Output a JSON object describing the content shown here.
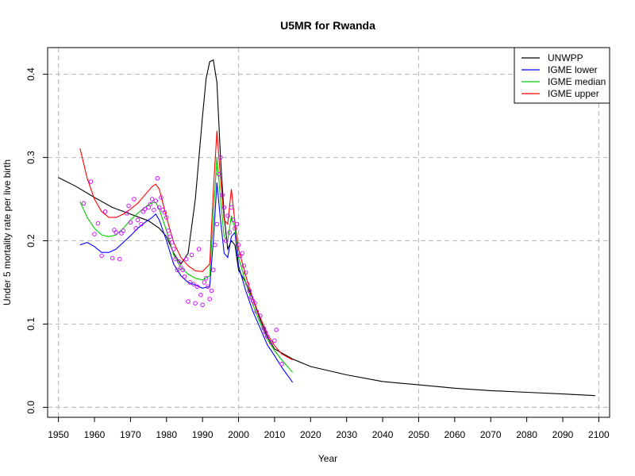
{
  "chart_data": {
    "type": "line",
    "title": "U5MR for Rwanda",
    "xlabel": "Year",
    "ylabel": "Under 5 mortality rate per live birth",
    "xlim": [
      1947,
      2103
    ],
    "ylim": [
      -0.012,
      0.432
    ],
    "x_ticks": [
      1950,
      1960,
      1970,
      1980,
      1990,
      2000,
      2010,
      2020,
      2030,
      2040,
      2050,
      2060,
      2070,
      2080,
      2090,
      2100
    ],
    "y_ticks": [
      0.0,
      0.1,
      0.2,
      0.3,
      0.4
    ],
    "x_tick_labels": [
      "1950",
      "1960",
      "1970",
      "1980",
      "1990",
      "2000",
      "2010",
      "2020",
      "2030",
      "2040",
      "2050",
      "2060",
      "2070",
      "2080",
      "2090",
      "2100"
    ],
    "y_tick_labels": [
      "0.0",
      "0.1",
      "0.2",
      "0.3",
      "0.4"
    ],
    "grid": true,
    "grid_x": [
      1950,
      2000,
      2050,
      2100
    ],
    "grid_y": [
      0.0,
      0.1,
      0.2,
      0.3,
      0.4
    ],
    "legend_position": "top-right",
    "series": [
      {
        "name": "UNWPP",
        "color": "#000000",
        "points": [
          [
            1950,
            0.276
          ],
          [
            1955,
            0.265
          ],
          [
            1960,
            0.252
          ],
          [
            1965,
            0.24
          ],
          [
            1970,
            0.232
          ],
          [
            1975,
            0.224
          ],
          [
            1978,
            0.215
          ],
          [
            1980,
            0.205
          ],
          [
            1982,
            0.185
          ],
          [
            1984,
            0.172
          ],
          [
            1986,
            0.185
          ],
          [
            1988,
            0.25
          ],
          [
            1990,
            0.35
          ],
          [
            1991,
            0.395
          ],
          [
            1992,
            0.415
          ],
          [
            1993,
            0.417
          ],
          [
            1994,
            0.39
          ],
          [
            1995,
            0.3
          ],
          [
            1996,
            0.23
          ],
          [
            1997,
            0.19
          ],
          [
            1998,
            0.2
          ],
          [
            1999,
            0.195
          ],
          [
            2000,
            0.165
          ],
          [
            2002,
            0.15
          ],
          [
            2004,
            0.13
          ],
          [
            2006,
            0.105
          ],
          [
            2008,
            0.085
          ],
          [
            2010,
            0.07
          ],
          [
            2015,
            0.058
          ],
          [
            2020,
            0.049
          ],
          [
            2030,
            0.039
          ],
          [
            2040,
            0.031
          ],
          [
            2050,
            0.027
          ],
          [
            2060,
            0.023
          ],
          [
            2070,
            0.02
          ],
          [
            2080,
            0.018
          ],
          [
            2090,
            0.016
          ],
          [
            2099,
            0.014
          ]
        ]
      },
      {
        "name": "IGME lower",
        "color": "#0000ff",
        "points": [
          [
            1956,
            0.195
          ],
          [
            1958,
            0.198
          ],
          [
            1960,
            0.193
          ],
          [
            1962,
            0.186
          ],
          [
            1964,
            0.186
          ],
          [
            1966,
            0.19
          ],
          [
            1968,
            0.198
          ],
          [
            1970,
            0.206
          ],
          [
            1972,
            0.215
          ],
          [
            1974,
            0.222
          ],
          [
            1976,
            0.228
          ],
          [
            1977,
            0.232
          ],
          [
            1978,
            0.225
          ],
          [
            1980,
            0.2
          ],
          [
            1982,
            0.172
          ],
          [
            1984,
            0.158
          ],
          [
            1986,
            0.15
          ],
          [
            1988,
            0.147
          ],
          [
            1990,
            0.143
          ],
          [
            1992,
            0.145
          ],
          [
            1993,
            0.2
          ],
          [
            1994,
            0.27
          ],
          [
            1995,
            0.225
          ],
          [
            1996,
            0.185
          ],
          [
            1997,
            0.18
          ],
          [
            1998,
            0.205
          ],
          [
            1999,
            0.21
          ],
          [
            2000,
            0.17
          ],
          [
            2002,
            0.14
          ],
          [
            2004,
            0.115
          ],
          [
            2006,
            0.095
          ],
          [
            2008,
            0.075
          ],
          [
            2010,
            0.062
          ],
          [
            2012,
            0.048
          ],
          [
            2015,
            0.03
          ]
        ]
      },
      {
        "name": "IGME median",
        "color": "#00cc00",
        "points": [
          [
            1956,
            0.247
          ],
          [
            1958,
            0.228
          ],
          [
            1960,
            0.215
          ],
          [
            1962,
            0.207
          ],
          [
            1964,
            0.205
          ],
          [
            1966,
            0.207
          ],
          [
            1968,
            0.215
          ],
          [
            1970,
            0.225
          ],
          [
            1972,
            0.233
          ],
          [
            1974,
            0.24
          ],
          [
            1976,
            0.246
          ],
          [
            1977,
            0.246
          ],
          [
            1978,
            0.238
          ],
          [
            1980,
            0.212
          ],
          [
            1982,
            0.183
          ],
          [
            1984,
            0.168
          ],
          [
            1986,
            0.16
          ],
          [
            1988,
            0.155
          ],
          [
            1990,
            0.153
          ],
          [
            1992,
            0.158
          ],
          [
            1993,
            0.23
          ],
          [
            1994,
            0.3
          ],
          [
            1995,
            0.25
          ],
          [
            1996,
            0.205
          ],
          [
            1997,
            0.2
          ],
          [
            1998,
            0.23
          ],
          [
            1999,
            0.215
          ],
          [
            2000,
            0.18
          ],
          [
            2002,
            0.15
          ],
          [
            2004,
            0.123
          ],
          [
            2006,
            0.101
          ],
          [
            2008,
            0.082
          ],
          [
            2010,
            0.068
          ],
          [
            2012,
            0.057
          ],
          [
            2015,
            0.042
          ]
        ]
      },
      {
        "name": "IGME upper",
        "color": "#ff0000",
        "points": [
          [
            1956,
            0.311
          ],
          [
            1958,
            0.275
          ],
          [
            1960,
            0.25
          ],
          [
            1962,
            0.235
          ],
          [
            1964,
            0.228
          ],
          [
            1966,
            0.228
          ],
          [
            1968,
            0.232
          ],
          [
            1970,
            0.238
          ],
          [
            1972,
            0.245
          ],
          [
            1974,
            0.255
          ],
          [
            1976,
            0.265
          ],
          [
            1977,
            0.268
          ],
          [
            1978,
            0.262
          ],
          [
            1980,
            0.228
          ],
          [
            1982,
            0.198
          ],
          [
            1984,
            0.18
          ],
          [
            1986,
            0.17
          ],
          [
            1988,
            0.164
          ],
          [
            1990,
            0.163
          ],
          [
            1992,
            0.172
          ],
          [
            1993,
            0.26
          ],
          [
            1994,
            0.332
          ],
          [
            1995,
            0.275
          ],
          [
            1996,
            0.225
          ],
          [
            1997,
            0.22
          ],
          [
            1998,
            0.262
          ],
          [
            1999,
            0.222
          ],
          [
            2000,
            0.19
          ],
          [
            2002,
            0.158
          ],
          [
            2004,
            0.13
          ],
          [
            2006,
            0.108
          ],
          [
            2008,
            0.088
          ],
          [
            2010,
            0.074
          ],
          [
            2012,
            0.064
          ],
          [
            2015,
            0.057
          ]
        ]
      }
    ],
    "scatter": {
      "color": "#cc00ff",
      "points": [
        [
          1957,
          0.245
        ],
        [
          1959,
          0.271
        ],
        [
          1960,
          0.208
        ],
        [
          1961,
          0.221
        ],
        [
          1962,
          0.182
        ],
        [
          1963,
          0.235
        ],
        [
          1965,
          0.179
        ],
        [
          1965.5,
          0.213
        ],
        [
          1966,
          0.21
        ],
        [
          1967,
          0.178
        ],
        [
          1967.5,
          0.209
        ],
        [
          1968,
          0.212
        ],
        [
          1969,
          0.233
        ],
        [
          1969.5,
          0.242
        ],
        [
          1970,
          0.222
        ],
        [
          1971,
          0.25
        ],
        [
          1971.5,
          0.215
        ],
        [
          1972,
          0.225
        ],
        [
          1973,
          0.22
        ],
        [
          1973.5,
          0.235
        ],
        [
          1974,
          0.238
        ],
        [
          1975,
          0.24
        ],
        [
          1975.5,
          0.244
        ],
        [
          1976,
          0.25
        ],
        [
          1976.5,
          0.237
        ],
        [
          1977,
          0.248
        ],
        [
          1977.5,
          0.275
        ],
        [
          1978,
          0.24
        ],
        [
          1978.5,
          0.252
        ],
        [
          1979,
          0.237
        ],
        [
          1979.5,
          0.234
        ],
        [
          1980,
          0.228
        ],
        [
          1980.5,
          0.212
        ],
        [
          1981,
          0.205
        ],
        [
          1981.5,
          0.198
        ],
        [
          1982,
          0.19
        ],
        [
          1982.5,
          0.178
        ],
        [
          1983,
          0.165
        ],
        [
          1983.5,
          0.175
        ],
        [
          1984,
          0.168
        ],
        [
          1984.5,
          0.165
        ],
        [
          1985,
          0.157
        ],
        [
          1985.5,
          0.178
        ],
        [
          1986,
          0.127
        ],
        [
          1986.5,
          0.15
        ],
        [
          1987,
          0.183
        ],
        [
          1987.5,
          0.148
        ],
        [
          1988,
          0.125
        ],
        [
          1988.5,
          0.145
        ],
        [
          1989,
          0.19
        ],
        [
          1989.5,
          0.135
        ],
        [
          1990,
          0.123
        ],
        [
          1990.5,
          0.15
        ],
        [
          1991,
          0.155
        ],
        [
          1991.5,
          0.145
        ],
        [
          1992,
          0.13
        ],
        [
          1992.5,
          0.14
        ],
        [
          1993,
          0.165
        ],
        [
          1993.5,
          0.195
        ],
        [
          1994,
          0.22
        ],
        [
          1994.5,
          0.28
        ],
        [
          1995,
          0.3
        ],
        [
          1995.5,
          0.255
        ],
        [
          1996,
          0.24
        ],
        [
          1996.5,
          0.2
        ],
        [
          1997,
          0.23
        ],
        [
          1997.5,
          0.21
        ],
        [
          1998,
          0.24
        ],
        [
          1998.5,
          0.225
        ],
        [
          1999,
          0.215
        ],
        [
          1999.5,
          0.22
        ],
        [
          2000,
          0.195
        ],
        [
          2000.5,
          0.182
        ],
        [
          2001,
          0.185
        ],
        [
          2001.5,
          0.17
        ],
        [
          2002,
          0.162
        ],
        [
          2002.5,
          0.148
        ],
        [
          2003,
          0.14
        ],
        [
          2003.5,
          0.132
        ],
        [
          2004,
          0.128
        ],
        [
          2004.5,
          0.125
        ],
        [
          2005,
          0.115
        ],
        [
          2006,
          0.11
        ],
        [
          2007,
          0.095
        ],
        [
          2007.5,
          0.09
        ],
        [
          2008,
          0.085
        ],
        [
          2009,
          0.078
        ],
        [
          2010,
          0.08
        ],
        [
          2010.5,
          0.093
        ],
        [
          2012,
          0.052
        ]
      ]
    }
  }
}
